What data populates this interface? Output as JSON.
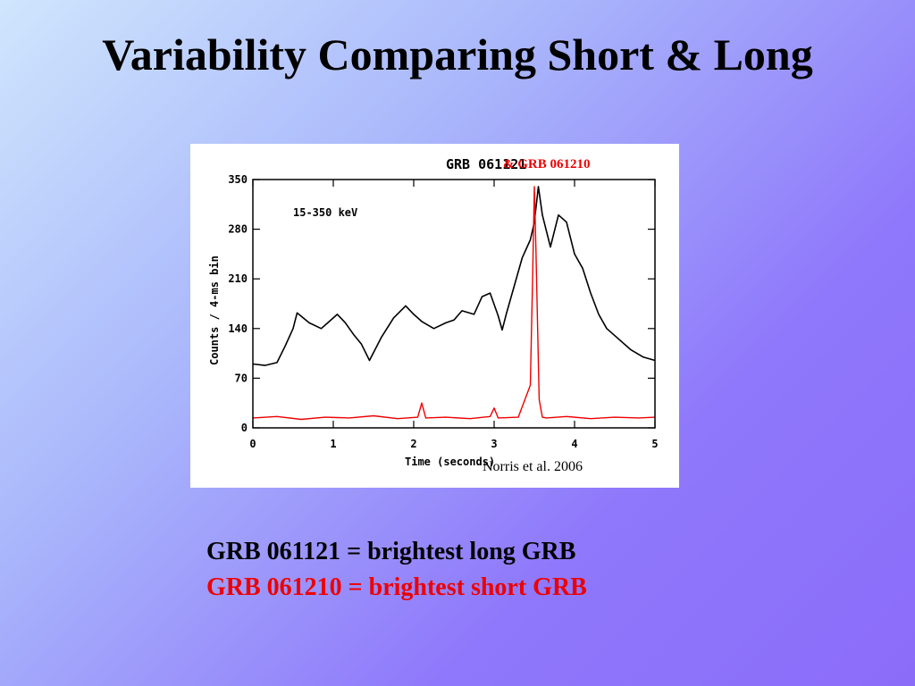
{
  "slide": {
    "title": "Variability Comparing Short & Long",
    "credit": "Norris et al. 2006",
    "lines": {
      "long": "GRB 061121 = brightest long GRB",
      "short": "GRB 061210 = brightest short GRB"
    }
  },
  "colors": {
    "long": "#000000",
    "short": "#ee0000"
  },
  "chart_data": {
    "type": "line",
    "title": "GRB 061121",
    "title_addendum": "& GRB 061210",
    "annotation": "15-350 keV",
    "xlabel": "Time (seconds)",
    "ylabel": "Counts / 4-ms bin",
    "xlim": [
      0,
      5
    ],
    "ylim": [
      0,
      350
    ],
    "xticks": [
      0,
      1,
      2,
      3,
      4,
      5
    ],
    "yticks": [
      0,
      70,
      140,
      210,
      280,
      350
    ],
    "grid": false,
    "series": [
      {
        "name": "GRB 061121",
        "color": "#000000",
        "x": [
          0,
          0.15,
          0.3,
          0.4,
          0.5,
          0.55,
          0.7,
          0.85,
          0.95,
          1.05,
          1.15,
          1.25,
          1.35,
          1.45,
          1.6,
          1.75,
          1.9,
          2.0,
          2.1,
          2.25,
          2.4,
          2.5,
          2.6,
          2.75,
          2.85,
          2.95,
          3.05,
          3.1,
          3.15,
          3.25,
          3.35,
          3.45,
          3.5,
          3.55,
          3.6,
          3.7,
          3.8,
          3.9,
          4.0,
          4.1,
          4.2,
          4.3,
          4.4,
          4.55,
          4.7,
          4.85,
          5.0
        ],
        "values": [
          90,
          88,
          92,
          115,
          140,
          162,
          148,
          140,
          150,
          160,
          148,
          132,
          118,
          95,
          128,
          155,
          172,
          160,
          150,
          140,
          148,
          152,
          165,
          160,
          185,
          190,
          158,
          138,
          160,
          200,
          240,
          265,
          290,
          340,
          300,
          255,
          300,
          290,
          245,
          225,
          190,
          160,
          140,
          125,
          110,
          100,
          95
        ]
      },
      {
        "name": "GRB 061210",
        "color": "#ee0000",
        "x": [
          0,
          0.3,
          0.6,
          0.9,
          1.2,
          1.5,
          1.8,
          2.05,
          2.1,
          2.15,
          2.4,
          2.7,
          2.95,
          3.0,
          3.05,
          3.3,
          3.45,
          3.48,
          3.5,
          3.52,
          3.56,
          3.6,
          3.65,
          3.9,
          4.2,
          4.5,
          4.8,
          5.0
        ],
        "values": [
          14,
          16,
          12,
          15,
          14,
          17,
          13,
          15,
          35,
          14,
          15,
          13,
          16,
          28,
          14,
          15,
          60,
          220,
          340,
          250,
          40,
          15,
          14,
          16,
          13,
          15,
          14,
          15
        ]
      }
    ]
  }
}
